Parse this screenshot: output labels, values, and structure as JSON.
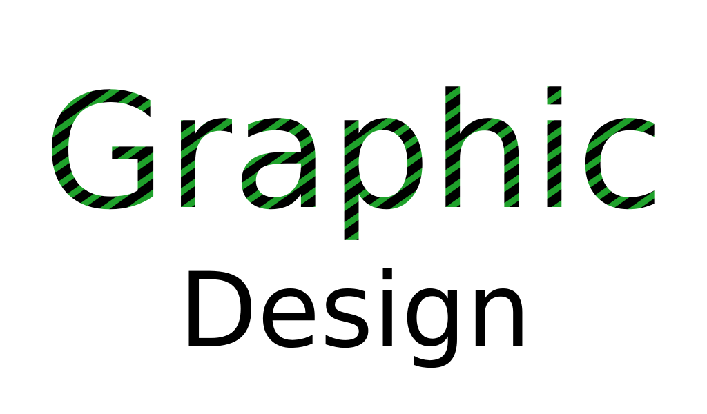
{
  "artwork": {
    "line1": "Graphic",
    "line2": "Design",
    "colors": {
      "background": "#ffffff",
      "text": "#000000",
      "stripe": "#1fa12b"
    },
    "style": "diagonal green hatch stripes over black lettering on first line; plain black second line"
  }
}
